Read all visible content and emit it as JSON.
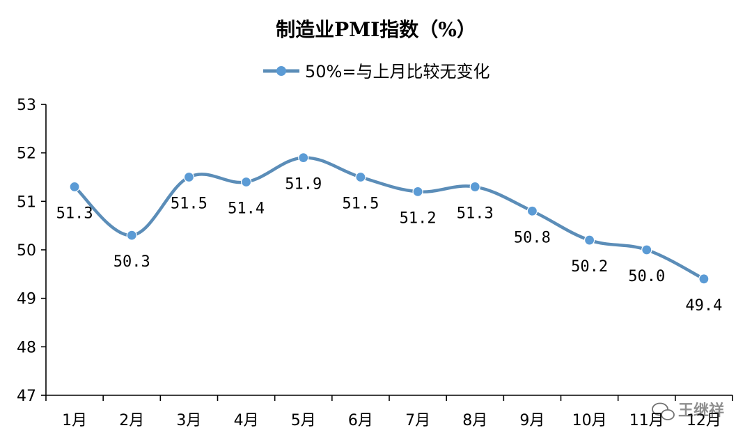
{
  "chart_data": {
    "type": "line",
    "title": "制造业PMI指数（%）",
    "categories": [
      "1月",
      "2月",
      "3月",
      "4月",
      "5月",
      "6月",
      "7月",
      "8月",
      "9月",
      "10月",
      "11月",
      "12月"
    ],
    "series": [
      {
        "name": "50%=与上月比较无变化",
        "values": [
          51.3,
          50.3,
          51.5,
          51.4,
          51.9,
          51.5,
          51.2,
          51.3,
          50.8,
          50.2,
          50.0,
          49.4
        ],
        "labels": [
          "51.3",
          "50.3",
          "51.5",
          "51.4",
          "51.9",
          "51.5",
          "51.2",
          "51.3",
          "50.8",
          "50.2",
          "50.0",
          "49.4"
        ]
      }
    ],
    "ylim": [
      47,
      53
    ],
    "yticks": [
      "47",
      "48",
      "49",
      "50",
      "51",
      "52",
      "53"
    ],
    "grid": false,
    "legend": "top-center",
    "colors": {
      "line": "#5b8db8",
      "marker": "#5b9bd5"
    }
  },
  "watermark": {
    "text": "王继祥"
  }
}
